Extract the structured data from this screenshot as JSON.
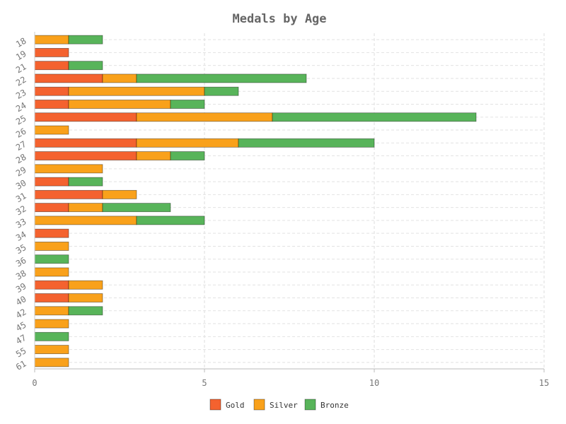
{
  "chart_data": {
    "type": "bar",
    "orientation": "horizontal",
    "stacked": true,
    "title": "Medals by Age",
    "xlabel": "",
    "ylabel": "",
    "xlim": [
      0,
      15
    ],
    "x_ticks": [
      0,
      5,
      10,
      15
    ],
    "grid": true,
    "legend_position": "bottom",
    "categories": [
      "18",
      "19",
      "21",
      "22",
      "23",
      "24",
      "25",
      "26",
      "27",
      "28",
      "29",
      "30",
      "31",
      "32",
      "33",
      "34",
      "35",
      "36",
      "38",
      "39",
      "40",
      "42",
      "45",
      "47",
      "55",
      "61"
    ],
    "series": [
      {
        "name": "Gold",
        "color": "#f4622f",
        "values": [
          0,
          1,
          1,
          2,
          1,
          1,
          3,
          0,
          3,
          3,
          0,
          1,
          2,
          1,
          0,
          1,
          0,
          0,
          0,
          1,
          1,
          0,
          0,
          0,
          0,
          0
        ]
      },
      {
        "name": "Silver",
        "color": "#f9a11b",
        "values": [
          1,
          0,
          0,
          1,
          4,
          3,
          4,
          1,
          3,
          1,
          2,
          0,
          1,
          1,
          3,
          0,
          1,
          0,
          1,
          1,
          1,
          1,
          1,
          0,
          1,
          1
        ]
      },
      {
        "name": "Bronze",
        "color": "#58b45a",
        "values": [
          1,
          0,
          1,
          5,
          1,
          1,
          6,
          0,
          4,
          1,
          0,
          1,
          0,
          2,
          2,
          0,
          0,
          1,
          0,
          0,
          0,
          1,
          0,
          1,
          0,
          0
        ]
      }
    ]
  }
}
